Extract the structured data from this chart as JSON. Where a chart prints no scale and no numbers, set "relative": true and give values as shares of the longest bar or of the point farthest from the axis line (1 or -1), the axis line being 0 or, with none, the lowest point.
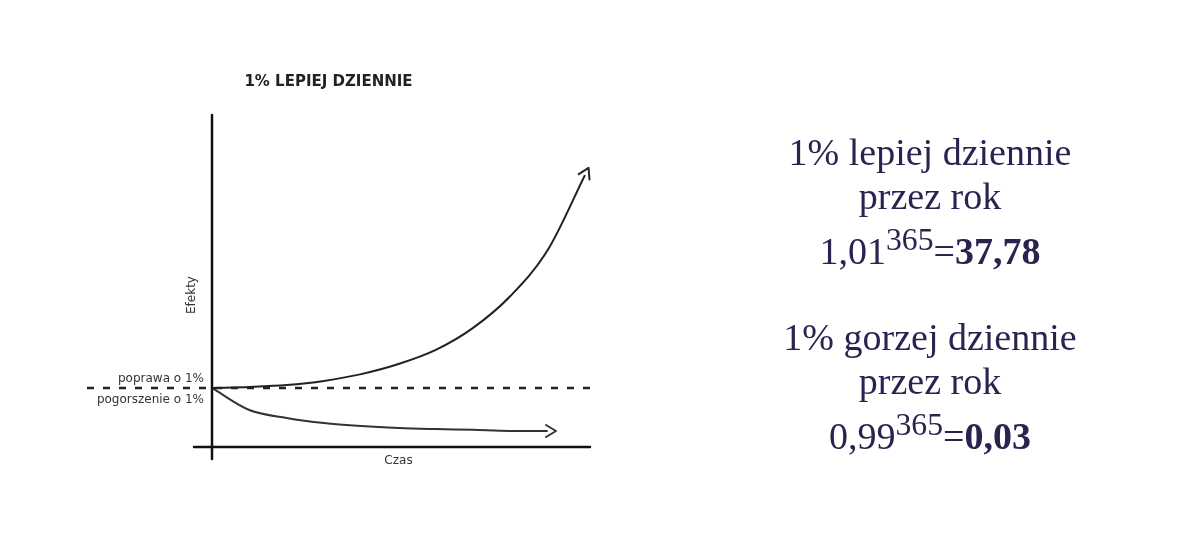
{
  "chart_data": [
    {
      "type": "line",
      "title": "1% LEPIEJ DZIENNIE",
      "xlabel": "Czas",
      "ylabel": "Efekty",
      "relative": true,
      "categories": [
        null,
        null,
        null,
        null,
        null,
        null,
        null,
        null,
        null,
        null,
        null
      ],
      "series": [
        {
          "color": "#222222",
          "values": [
            0.217,
            0.221,
            0.228,
            0.243,
            0.268,
            0.305,
            0.357,
            0.438,
            0.555,
            0.724,
            1
          ]
        },
        {
          "color": "#333333",
          "values": [
            0.217,
            0.136,
            0.107,
            0.088,
            0.077,
            0.07,
            0.066,
            0.063,
            0.059,
            0.059,
            null
          ]
        }
      ],
      "ref_lines": [
        {
          "axis": "y",
          "value": 0.217,
          "color": "#222222",
          "line_style": "dashed"
        }
      ],
      "annotations": [
        "poprawa o 1%",
        "pogorszenie o 1%"
      ],
      "legend": false,
      "marker": "none"
    },
    {
      "type": "other",
      "annotations": [
        "1% lepiej dziennie",
        "przez rok",
        "1,01$^{365}$=37,78",
        "1% gorzej dziennie",
        "przez rok",
        "0,99$^{365}$=0,03"
      ]
    }
  ]
}
